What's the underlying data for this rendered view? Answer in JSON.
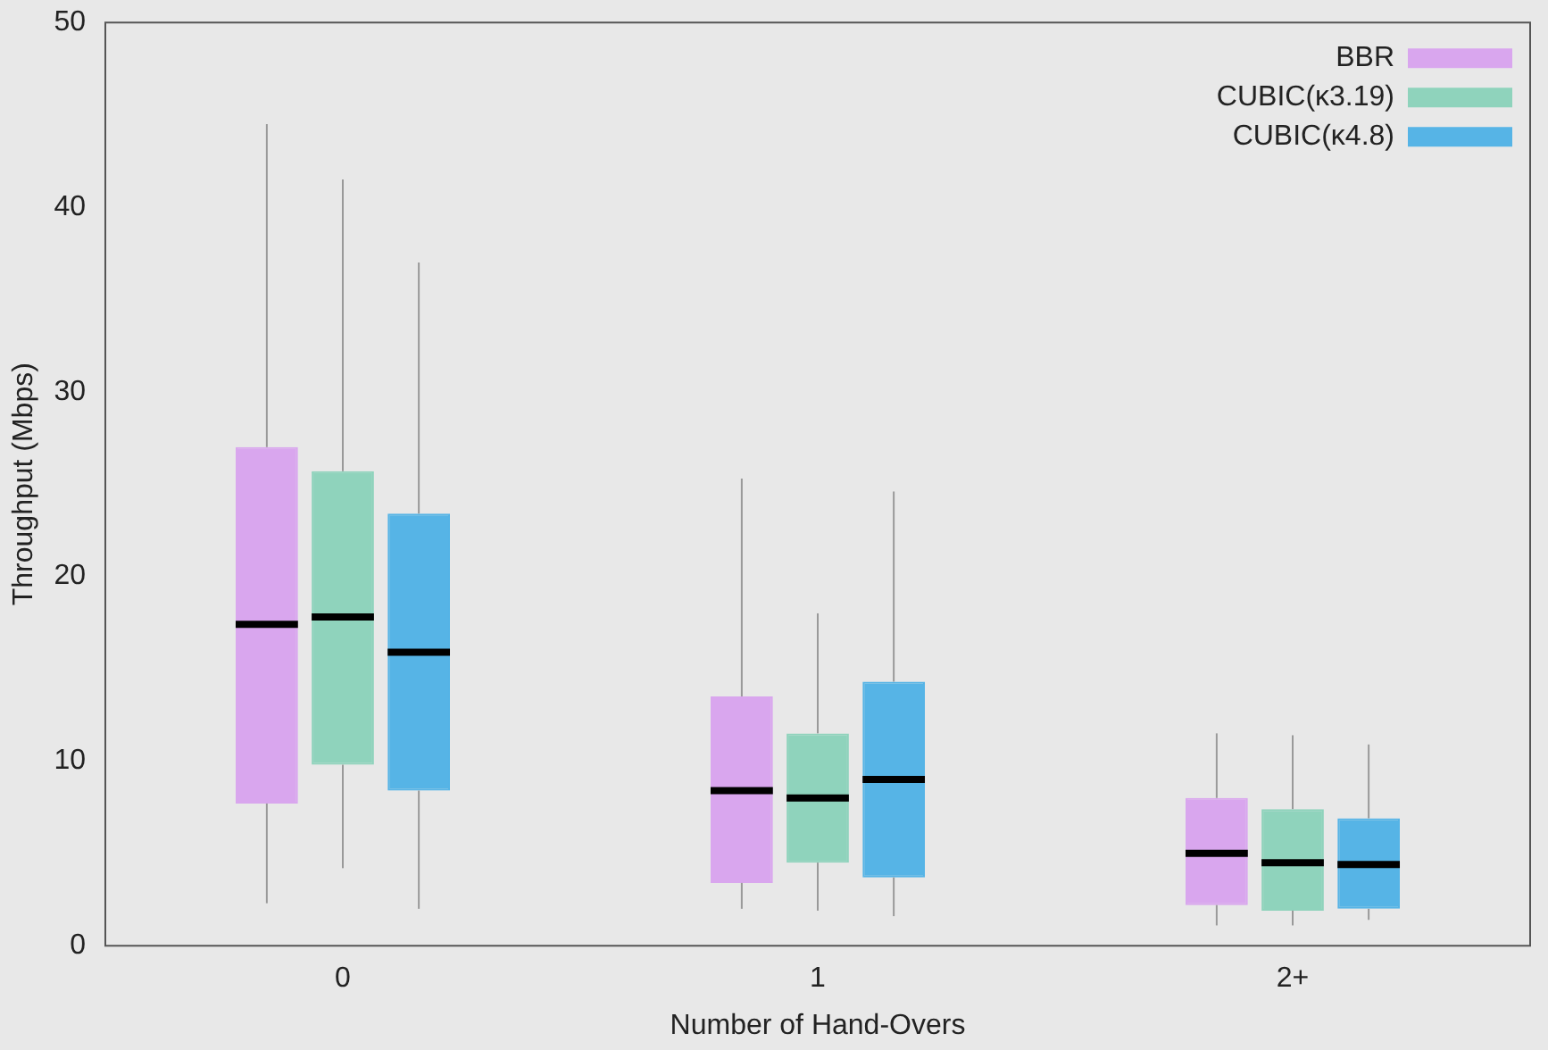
{
  "chart_data": {
    "type": "box",
    "xlabel": "Number of Hand-Overs",
    "ylabel": "Throughput (Mbps)",
    "categories": [
      "0",
      "1",
      "2+"
    ],
    "ylim": [
      0,
      50
    ],
    "yticks": [
      0,
      10,
      20,
      30,
      40,
      50
    ],
    "grid": false,
    "legend": "top right",
    "series": [
      {
        "name": "BBR",
        "color": "#d9a6ee",
        "boxes": [
          {
            "low": 2.3,
            "q1": 7.7,
            "median": 17.4,
            "q3": 27.0,
            "high": 44.5
          },
          {
            "low": 2.0,
            "q1": 3.4,
            "median": 8.4,
            "q3": 13.5,
            "high": 25.3
          },
          {
            "low": 1.1,
            "q1": 2.2,
            "median": 5.0,
            "q3": 8.0,
            "high": 11.5
          }
        ]
      },
      {
        "name": "CUBIC(κ3.19)",
        "color": "#8fd3bc",
        "boxes": [
          {
            "low": 4.2,
            "q1": 9.8,
            "median": 17.8,
            "q3": 25.7,
            "high": 41.5
          },
          {
            "low": 1.9,
            "q1": 4.5,
            "median": 8.0,
            "q3": 11.5,
            "high": 18.0
          },
          {
            "low": 1.1,
            "q1": 1.9,
            "median": 4.5,
            "q3": 7.4,
            "high": 11.4
          }
        ]
      },
      {
        "name": "CUBIC(κ4.8)",
        "color": "#56b4e6",
        "boxes": [
          {
            "low": 2.0,
            "q1": 8.4,
            "median": 15.9,
            "q3": 23.4,
            "high": 37.0
          },
          {
            "low": 1.6,
            "q1": 3.7,
            "median": 9.0,
            "q3": 14.3,
            "high": 24.6
          },
          {
            "low": 1.4,
            "q1": 2.0,
            "median": 4.4,
            "q3": 6.9,
            "high": 10.9
          }
        ]
      }
    ]
  }
}
